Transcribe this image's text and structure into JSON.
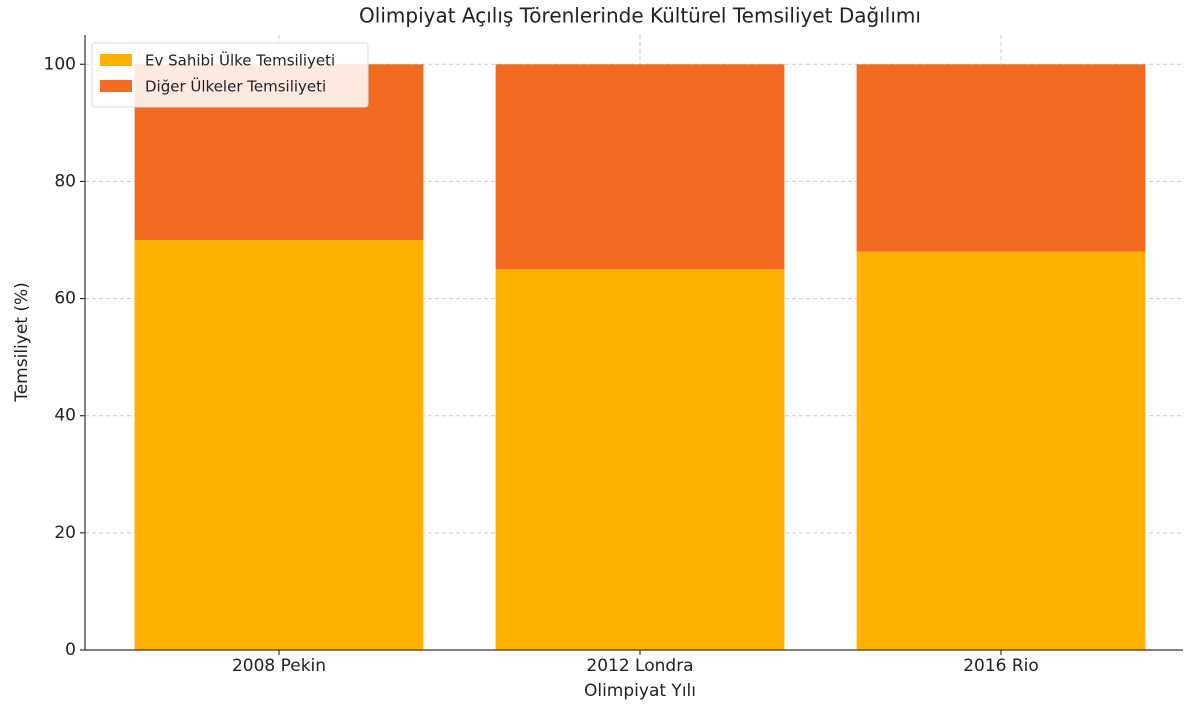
{
  "chart_data": {
    "type": "stacked_bar",
    "title": "Olimpiyat Açılış Törenlerinde Kültürel Temsiliyet Dağılımı",
    "x_label": "Olimpiyat Yılı",
    "y_label": "Temsiliyet (%)",
    "categories": [
      "2008 Pekin",
      "2012 Londra",
      "2016 Rio"
    ],
    "series": [
      {
        "name": "Ev Sahibi Ülke Temsiliyeti",
        "color": "#ffb000",
        "values": [
          70,
          65,
          68
        ]
      },
      {
        "name": "Diğer Ülkeler Temsiliyeti",
        "color": "#f26b21",
        "values": [
          30,
          35,
          32
        ]
      }
    ],
    "ylim": [
      0,
      105
    ],
    "yticks": [
      0,
      20,
      40,
      60,
      80,
      100
    ],
    "grid": true,
    "legend": "upper left"
  }
}
